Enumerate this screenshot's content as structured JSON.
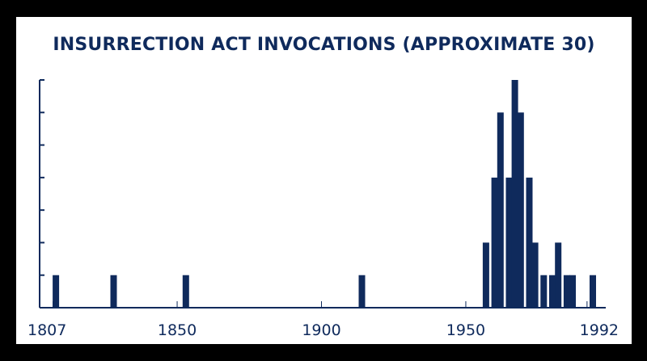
{
  "chart_data": {
    "type": "bar",
    "title": "INSURRECTION ACT INVOCATIONS (APPROXIMATE 30)",
    "xlabel": "",
    "ylabel": "",
    "xlim": [
      1806,
      1994
    ],
    "ylim": [
      0,
      7
    ],
    "x_ticks": [
      1807,
      1850,
      1900,
      1950,
      1992
    ],
    "y_tick_count": 7,
    "bar_color": "#0f2a5c",
    "grid": false,
    "x": [
      1808,
      1828,
      1853,
      1914,
      1957,
      1960,
      1962,
      1965,
      1967,
      1969,
      1972,
      1974,
      1977,
      1980,
      1982,
      1985,
      1987,
      1994
    ],
    "values": [
      1,
      1,
      1,
      1,
      2,
      4,
      6,
      4,
      7,
      6,
      4,
      2,
      1,
      1,
      2,
      1,
      1,
      1
    ]
  }
}
